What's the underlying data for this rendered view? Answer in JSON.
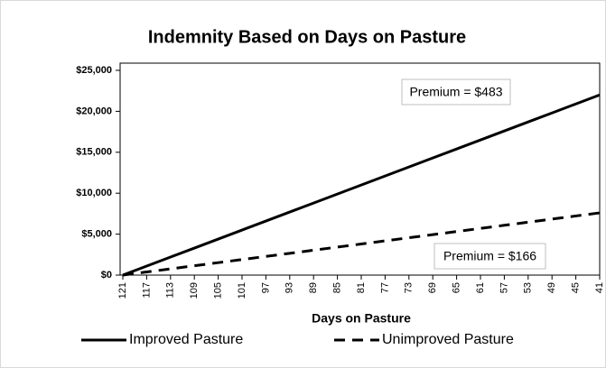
{
  "chart_data": {
    "type": "line",
    "title": "Indemnity Based on Days on Pasture",
    "x_label": "Days on Pasture",
    "categories": [
      "121",
      "117",
      "113",
      "109",
      "105",
      "101",
      "97",
      "93",
      "89",
      "85",
      "81",
      "77",
      "73",
      "69",
      "65",
      "61",
      "57",
      "53",
      "49",
      "45",
      "41"
    ],
    "series": [
      {
        "name": "Improved Pasture",
        "color": "#000000",
        "dash": "solid",
        "values": [
          0,
          1100,
          2200,
          3300,
          4400,
          5500,
          6600,
          7700,
          8800,
          9900,
          11000,
          12100,
          13200,
          14300,
          15400,
          16500,
          17600,
          18700,
          19800,
          20900,
          22000
        ]
      },
      {
        "name": "Unimproved Pasture",
        "color": "#000000",
        "dash": "dashed",
        "values": [
          0,
          380,
          760,
          1140,
          1520,
          1900,
          2280,
          2660,
          3040,
          3420,
          3800,
          4180,
          4560,
          4940,
          5320,
          5700,
          6080,
          6460,
          6840,
          7220,
          7600
        ]
      }
    ],
    "annotations": [
      "Premium = $483",
      "Premium = $166"
    ],
    "ylim": [
      0,
      25000
    ],
    "yticks": [
      {
        "value": 0,
        "label": "$0"
      },
      {
        "value": 5000,
        "label": "$5,000"
      },
      {
        "value": 10000,
        "label": "$10,000"
      },
      {
        "value": 15000,
        "label": "$15,000"
      },
      {
        "value": 20000,
        "label": "$20,000"
      },
      {
        "value": 25000,
        "label": "$25,000"
      }
    ],
    "grid": false,
    "legend": "bottom"
  }
}
